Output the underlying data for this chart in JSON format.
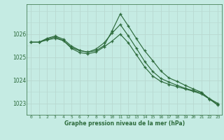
{
  "xlabel": "Graphe pression niveau de la mer (hPa)",
  "background_color": "#c5ebe3",
  "grid_major_color": "#b8d8d0",
  "grid_minor_color": "#cce8e0",
  "line_color": "#2d6b3c",
  "x_ticks": [
    0,
    1,
    2,
    3,
    4,
    5,
    6,
    7,
    8,
    9,
    10,
    11,
    12,
    13,
    14,
    15,
    16,
    17,
    18,
    19,
    20,
    21,
    22,
    23
  ],
  "ylim": [
    1022.5,
    1027.3
  ],
  "yticks": [
    1023,
    1024,
    1025,
    1026
  ],
  "series1_y": [
    1025.65,
    1025.65,
    1025.75,
    1025.82,
    1025.72,
    1025.42,
    1025.28,
    1025.22,
    1025.28,
    1025.5,
    1026.15,
    1026.88,
    1026.35,
    1025.8,
    1025.28,
    1024.85,
    1024.4,
    1024.1,
    1023.95,
    1023.78,
    1023.62,
    1023.48,
    1023.18,
    1022.95
  ],
  "series2_y": [
    1025.65,
    1025.65,
    1025.78,
    1025.88,
    1025.72,
    1025.38,
    1025.2,
    1025.15,
    1025.22,
    1025.45,
    1025.7,
    1026.0,
    1025.62,
    1025.1,
    1024.58,
    1024.18,
    1023.95,
    1023.82,
    1023.72,
    1023.62,
    1023.52,
    1023.4,
    1023.18,
    1022.92
  ],
  "series3_y": [
    1025.65,
    1025.65,
    1025.82,
    1025.92,
    1025.78,
    1025.48,
    1025.3,
    1025.22,
    1025.35,
    1025.62,
    1026.05,
    1026.42,
    1025.92,
    1025.38,
    1024.82,
    1024.38,
    1024.08,
    1023.92,
    1023.78,
    1023.65,
    1023.55,
    1023.45,
    1023.2,
    1023.0
  ]
}
